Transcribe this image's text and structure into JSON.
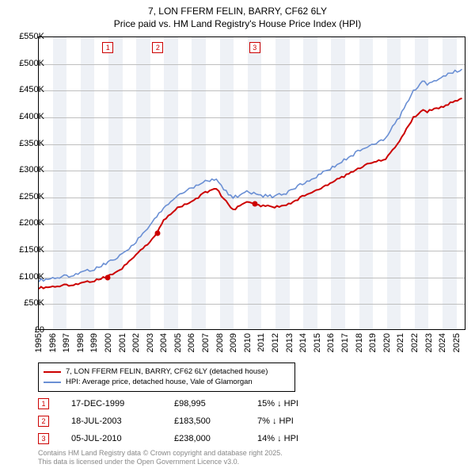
{
  "title": {
    "line1": "7, LON FFERM FELIN, BARRY, CF62 6LY",
    "line2": "Price paid vs. HM Land Registry's House Price Index (HPI)"
  },
  "chart": {
    "type": "line",
    "background_color": "#ffffff",
    "band_color": "#eef1f6",
    "grid_color": "#bfbfbf",
    "border_color": "#000000",
    "x": {
      "min": 1995,
      "max": 2025.7,
      "ticks": [
        1995,
        1996,
        1997,
        1998,
        1999,
        2000,
        2001,
        2002,
        2003,
        2004,
        2005,
        2006,
        2007,
        2008,
        2009,
        2010,
        2011,
        2012,
        2013,
        2014,
        2015,
        2016,
        2017,
        2018,
        2019,
        2020,
        2021,
        2022,
        2023,
        2024,
        2025
      ]
    },
    "y": {
      "min": 0,
      "max": 550,
      "ticks": [
        0,
        50,
        100,
        150,
        200,
        250,
        300,
        350,
        400,
        450,
        500,
        550
      ],
      "tick_labels": [
        "£0",
        "£50K",
        "£100K",
        "£150K",
        "£200K",
        "£250K",
        "£300K",
        "£350K",
        "£400K",
        "£450K",
        "£500K",
        "£550K"
      ]
    },
    "series": [
      {
        "name": "7, LON FFERM FELIN, BARRY, CF62 6LY (detached house)",
        "color": "#cc0000",
        "width": 2,
        "points": [
          [
            1995,
            78
          ],
          [
            1996,
            80
          ],
          [
            1997,
            83
          ],
          [
            1998,
            86
          ],
          [
            1999,
            92
          ],
          [
            1999.96,
            98.995
          ],
          [
            2000.5,
            105
          ],
          [
            2001,
            115
          ],
          [
            2002,
            140
          ],
          [
            2003,
            165
          ],
          [
            2003.55,
            183.5
          ],
          [
            2004,
            205
          ],
          [
            2005,
            228
          ],
          [
            2006,
            240
          ],
          [
            2007,
            258
          ],
          [
            2007.8,
            265
          ],
          [
            2008.5,
            240
          ],
          [
            2009,
            225
          ],
          [
            2009.5,
            232
          ],
          [
            2010,
            238
          ],
          [
            2010.51,
            238
          ],
          [
            2011,
            233
          ],
          [
            2012,
            230
          ],
          [
            2013,
            235
          ],
          [
            2014,
            250
          ],
          [
            2015,
            262
          ],
          [
            2016,
            275
          ],
          [
            2017,
            288
          ],
          [
            2018,
            303
          ],
          [
            2019,
            315
          ],
          [
            2020,
            320
          ],
          [
            2021,
            355
          ],
          [
            2022,
            398
          ],
          [
            2022.7,
            415
          ],
          [
            2023,
            410
          ],
          [
            2024,
            418
          ],
          [
            2025,
            430
          ],
          [
            2025.5,
            435
          ]
        ],
        "markers": [
          {
            "x": 1999.96,
            "y": 98.995
          },
          {
            "x": 2003.55,
            "y": 183.5
          },
          {
            "x": 2010.51,
            "y": 238
          }
        ]
      },
      {
        "name": "HPI: Average price, detached house, Vale of Glamorgan",
        "color": "#6a8fd4",
        "width": 1.6,
        "points": [
          [
            1995,
            92
          ],
          [
            1996,
            96
          ],
          [
            1997,
            100
          ],
          [
            1998,
            106
          ],
          [
            1999,
            114
          ],
          [
            2000,
            125
          ],
          [
            2001,
            140
          ],
          [
            2002,
            165
          ],
          [
            2003,
            195
          ],
          [
            2004,
            230
          ],
          [
            2005,
            252
          ],
          [
            2006,
            265
          ],
          [
            2007,
            278
          ],
          [
            2007.8,
            282
          ],
          [
            2008.5,
            260
          ],
          [
            2009,
            248
          ],
          [
            2010,
            258
          ],
          [
            2011,
            252
          ],
          [
            2012,
            250
          ],
          [
            2013,
            258
          ],
          [
            2014,
            275
          ],
          [
            2015,
            288
          ],
          [
            2016,
            302
          ],
          [
            2017,
            318
          ],
          [
            2018,
            335
          ],
          [
            2019,
            348
          ],
          [
            2020,
            360
          ],
          [
            2021,
            400
          ],
          [
            2022,
            450
          ],
          [
            2022.8,
            470
          ],
          [
            2023,
            460
          ],
          [
            2024,
            475
          ],
          [
            2025,
            485
          ],
          [
            2025.5,
            490
          ]
        ]
      }
    ],
    "top_markers": [
      {
        "label": "1",
        "x": 1999.96
      },
      {
        "label": "2",
        "x": 2003.55
      },
      {
        "label": "3",
        "x": 2010.51
      }
    ]
  },
  "legend": {
    "items": [
      {
        "color": "#cc0000",
        "label": "7, LON FFERM FELIN, BARRY, CF62 6LY (detached house)"
      },
      {
        "color": "#6a8fd4",
        "label": "HPI: Average price, detached house, Vale of Glamorgan"
      }
    ]
  },
  "annotations": [
    {
      "n": "1",
      "date": "17-DEC-1999",
      "price": "£98,995",
      "pct": "15% ↓ HPI"
    },
    {
      "n": "2",
      "date": "18-JUL-2003",
      "price": "£183,500",
      "pct": "7% ↓ HPI"
    },
    {
      "n": "3",
      "date": "05-JUL-2010",
      "price": "£238,000",
      "pct": "14% ↓ HPI"
    }
  ],
  "footer": {
    "line1": "Contains HM Land Registry data © Crown copyright and database right 2025.",
    "line2": "This data is licensed under the Open Government Licence v3.0."
  },
  "colors": {
    "marker_border": "#cc0000",
    "marker_text": "#cc0000",
    "footer_text": "#888888"
  }
}
